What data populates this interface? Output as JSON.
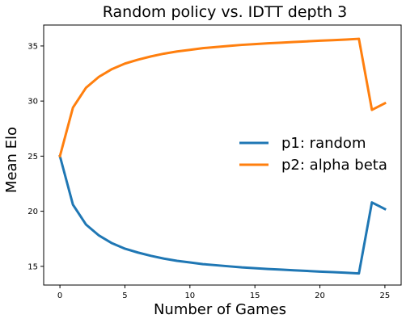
{
  "chart_data": {
    "type": "line",
    "title": "Random policy vs. IDTT depth 3",
    "xlabel": "Number of Games",
    "ylabel": "Mean Elo",
    "xlim": [
      -1.25,
      26.25
    ],
    "ylim": [
      13.3,
      36.9
    ],
    "xticks": [
      0,
      5,
      10,
      15,
      20,
      25
    ],
    "yticks": [
      15,
      20,
      25,
      30,
      35
    ],
    "grid": false,
    "legend_position": "center-right",
    "x": [
      0,
      1,
      2,
      3,
      4,
      5,
      6,
      7,
      8,
      9,
      10,
      11,
      12,
      13,
      14,
      15,
      16,
      17,
      18,
      19,
      20,
      21,
      22,
      23,
      24,
      25
    ],
    "series": [
      {
        "name": "p1: random",
        "color": "#1f77b4",
        "values": [
          25.0,
          20.6,
          18.8,
          17.8,
          17.1,
          16.6,
          16.25,
          15.95,
          15.7,
          15.5,
          15.35,
          15.2,
          15.1,
          15.0,
          14.9,
          14.83,
          14.76,
          14.7,
          14.64,
          14.58,
          14.52,
          14.47,
          14.42,
          14.35,
          20.8,
          20.2
        ]
      },
      {
        "name": "p2: alpha beta",
        "color": "#ff7f0e",
        "values": [
          25.0,
          29.4,
          31.2,
          32.2,
          32.9,
          33.4,
          33.75,
          34.05,
          34.3,
          34.5,
          34.65,
          34.8,
          34.9,
          35.0,
          35.1,
          35.17,
          35.24,
          35.3,
          35.36,
          35.42,
          35.48,
          35.53,
          35.58,
          35.65,
          29.2,
          29.8
        ]
      }
    ]
  }
}
